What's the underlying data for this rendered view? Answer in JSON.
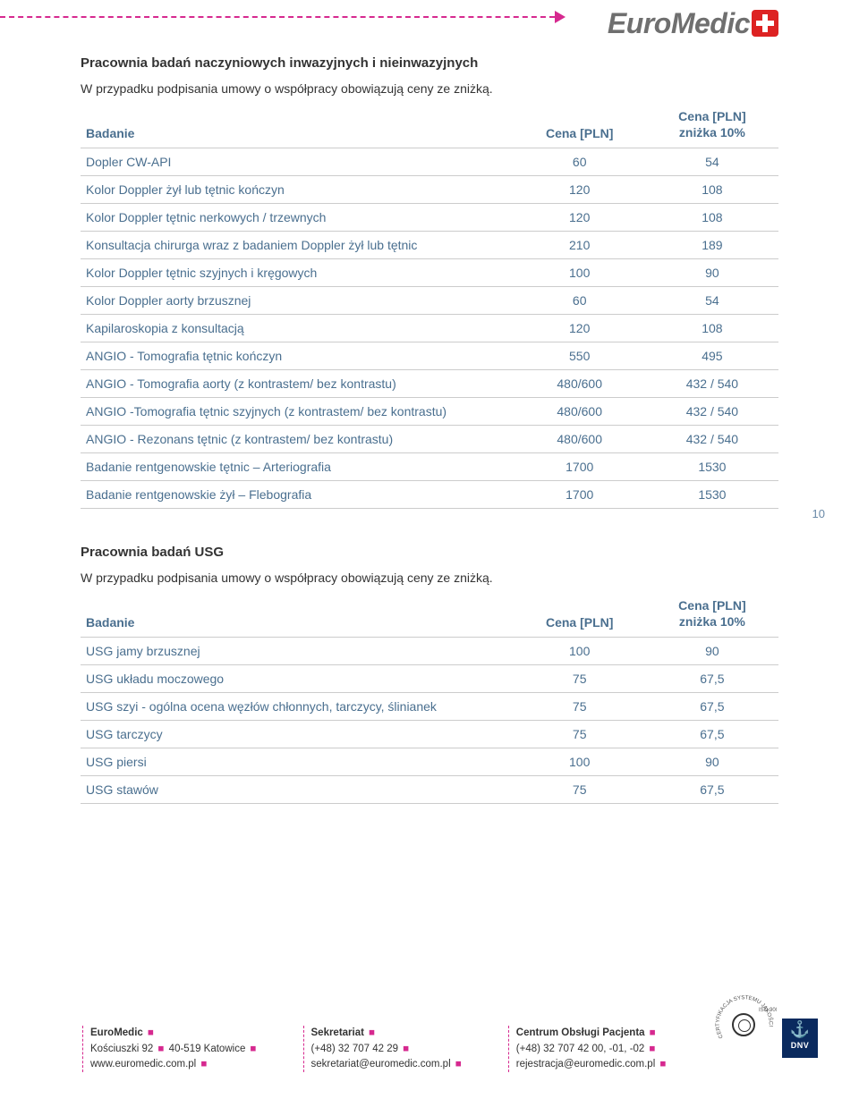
{
  "logo_text": "EuroMedic",
  "section1": {
    "title": "Pracownia badań naczyniowych inwazyjnych i nieinwazyjnych",
    "subtext": "W przypadku podpisania umowy o współpracy obowiązują ceny ze zniżką.",
    "headers": {
      "c1": "Badanie",
      "c2": "Cena [PLN]",
      "c3a": "Cena [PLN]",
      "c3b": "zniżka 10%"
    },
    "rows": [
      {
        "name": "Dopler CW-API",
        "price": "60",
        "disc": "54"
      },
      {
        "name": "Kolor Doppler żył lub tętnic kończyn",
        "price": "120",
        "disc": "108"
      },
      {
        "name": "Kolor Doppler tętnic nerkowych / trzewnych",
        "price": "120",
        "disc": "108"
      },
      {
        "name": "Konsultacja chirurga wraz z badaniem Doppler żył lub tętnic",
        "price": "210",
        "disc": "189"
      },
      {
        "name": "Kolor Doppler tętnic szyjnych i kręgowych",
        "price": "100",
        "disc": "90"
      },
      {
        "name": "Kolor Doppler aorty brzusznej",
        "price": "60",
        "disc": "54"
      },
      {
        "name": "Kapilaroskopia z konsultacją",
        "price": "120",
        "disc": "108"
      },
      {
        "name": "ANGIO - Tomografia  tętnic kończyn",
        "price": "550",
        "disc": "495"
      },
      {
        "name": "ANGIO - Tomografia  aorty (z kontrastem/ bez kontrastu)",
        "price": "480/600",
        "disc": "432 / 540"
      },
      {
        "name": "ANGIO -Tomografia tętnic szyjnych (z kontrastem/ bez kontrastu)",
        "price": "480/600",
        "disc": "432 / 540"
      },
      {
        "name": "ANGIO - Rezonans tętnic (z kontrastem/ bez kontrastu)",
        "price": "480/600",
        "disc": "432 / 540"
      },
      {
        "name": "Badanie rentgenowskie tętnic – Arteriografia",
        "price": "1700",
        "disc": "1530"
      },
      {
        "name": "Badanie rentgenowskie żył – Flebografia",
        "price": "1700",
        "disc": "1530"
      }
    ]
  },
  "page_number": "10",
  "section2": {
    "title": "Pracownia badań USG",
    "subtext": "W przypadku podpisania umowy o współpracy obowiązują ceny ze zniżką.",
    "headers": {
      "c1": "Badanie",
      "c2": "Cena [PLN]",
      "c3a": "Cena [PLN]",
      "c3b": "zniżka 10%"
    },
    "rows": [
      {
        "name": "USG jamy brzusznej",
        "price": "100",
        "disc": "90"
      },
      {
        "name": "USG układu moczowego",
        "price": "75",
        "disc": "67,5"
      },
      {
        "name": "USG szyi - ogólna ocena węzłów chłonnych, tarczycy, ślinianek",
        "price": "75",
        "disc": "67,5"
      },
      {
        "name": "USG tarczycy",
        "price": "75",
        "disc": "67,5"
      },
      {
        "name": "USG piersi",
        "price": "100",
        "disc": "90"
      },
      {
        "name": "USG stawów",
        "price": "75",
        "disc": "67,5"
      }
    ]
  },
  "footer": {
    "col1": {
      "l1a": "EuroMedic",
      "l2": "Kościuszki 92",
      "l2b": "40-519 Katowice",
      "l3": "www.euromedic.com.pl"
    },
    "col2": {
      "l1a": "Sekretariat",
      "l2": "(+48) 32 707 42 29",
      "l3": "sekretariat@euromedic.com.pl"
    },
    "col3": {
      "l1a": "Centrum Obsługi Pacjenta",
      "l2": "(+48) 32 707 42  00, -01, -02",
      "l3": "rejestracja@euromedic.com.pl"
    }
  },
  "cert": {
    "arc_text": "CERTYFIKACJA SYSTEMU JAKOŚCI",
    "iso": "ISO 9001",
    "dnv": "DNV"
  }
}
